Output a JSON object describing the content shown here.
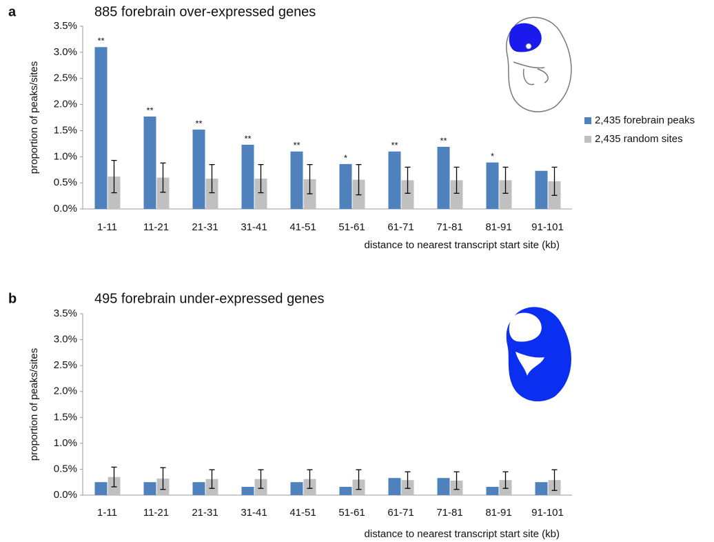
{
  "chart_data": [
    {
      "type": "bar",
      "panel": "a",
      "title": "885 forebrain over-expressed genes",
      "ylabel": "proportion of peaks/sites",
      "xlabel": "distance to nearest transcript start site (kb)",
      "categories": [
        "1-11",
        "11-21",
        "21-31",
        "31-41",
        "41-51",
        "51-61",
        "61-71",
        "71-81",
        "81-91",
        "91-101"
      ],
      "series": [
        {
          "name": "2,435 forebrain peaks",
          "color": "#4f81bd",
          "values": [
            3.1,
            1.77,
            1.52,
            1.23,
            1.1,
            0.86,
            1.1,
            1.19,
            0.89,
            0.73
          ]
        },
        {
          "name": "2,435 random sites",
          "color": "#c0c0c0",
          "values": [
            0.62,
            0.6,
            0.58,
            0.58,
            0.57,
            0.56,
            0.55,
            0.55,
            0.55,
            0.53
          ],
          "errors": [
            0.31,
            0.28,
            0.27,
            0.27,
            0.28,
            0.29,
            0.25,
            0.25,
            0.25,
            0.27
          ]
        }
      ],
      "annotations": [
        "**",
        "**",
        "**",
        "**",
        "**",
        "*",
        "**",
        "**",
        "*",
        null
      ],
      "ylim": [
        0,
        3.5
      ],
      "yticks": [
        {
          "value": 0,
          "label": "0.0%"
        },
        {
          "value": 0.5,
          "label": "0.5%"
        },
        {
          "value": 1,
          "label": "1.0%"
        },
        {
          "value": 1.5,
          "label": "1.5%"
        },
        {
          "value": 2,
          "label": "2.0%"
        },
        {
          "value": 2.5,
          "label": "2.5%"
        },
        {
          "value": 3,
          "label": "3.0%"
        },
        {
          "value": 3.5,
          "label": "3.5%"
        }
      ],
      "legend": "right"
    },
    {
      "type": "bar",
      "panel": "b",
      "title": "495 forebrain under-expressed genes",
      "ylabel": "proportion of peaks/sites",
      "xlabel": "distance to nearest transcript start site (kb)",
      "categories": [
        "1-11",
        "11-21",
        "21-31",
        "31-41",
        "41-51",
        "51-61",
        "61-71",
        "71-81",
        "81-91",
        "91-101"
      ],
      "series": [
        {
          "color": "#4f81bd",
          "values": [
            0.25,
            0.25,
            0.25,
            0.16,
            0.25,
            0.16,
            0.33,
            0.33,
            0.16,
            0.25
          ]
        },
        {
          "color": "#c0c0c0",
          "values": [
            0.35,
            0.32,
            0.31,
            0.31,
            0.31,
            0.3,
            0.29,
            0.28,
            0.29,
            0.29
          ],
          "errors": [
            0.19,
            0.21,
            0.18,
            0.18,
            0.18,
            0.19,
            0.16,
            0.17,
            0.16,
            0.2
          ]
        }
      ],
      "ylim": [
        0,
        3.5
      ],
      "yticks": [
        {
          "value": 0,
          "label": "0.0%"
        },
        {
          "value": 0.5,
          "label": "0.5%"
        },
        {
          "value": 1,
          "label": "1.0%"
        },
        {
          "value": 1.5,
          "label": "1.5%"
        },
        {
          "value": 2,
          "label": "2.0%"
        },
        {
          "value": 2.5,
          "label": "2.5%"
        },
        {
          "value": 3,
          "label": "3.0%"
        },
        {
          "value": 3.5,
          "label": "3.5%"
        }
      ]
    }
  ]
}
